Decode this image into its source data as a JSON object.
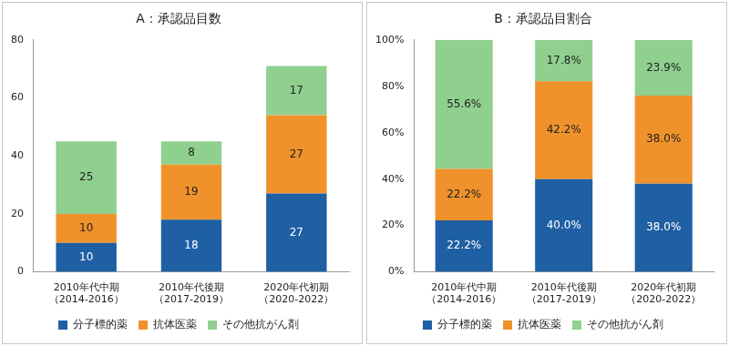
{
  "chart_data": [
    {
      "type": "bar",
      "title": "A：承認品目数",
      "categories": [
        "2010年代中期\n（2014-2016）",
        "2010年代後期\n（2017-2019）",
        "2020年代初期\n（2020-2022）"
      ],
      "series": [
        {
          "name": "分子標的薬",
          "color": "#1f5fa3",
          "values": [
            10,
            18,
            27
          ]
        },
        {
          "name": "抗体医薬",
          "color": "#f0922b",
          "values": [
            10,
            19,
            27
          ]
        },
        {
          "name": "その他抗がん剤",
          "color": "#90d08f",
          "values": [
            25,
            8,
            17
          ]
        }
      ],
      "ylim": [
        0,
        80
      ],
      "yticks": [
        0,
        20,
        40,
        60,
        80
      ],
      "stacked": true,
      "data_labels": true,
      "grid": false,
      "legend": "bottom"
    },
    {
      "type": "bar",
      "title": "B：承認品目割合",
      "categories": [
        "2010年代中期\n（2014-2016）",
        "2010年代後期\n（2017-2019）",
        "2020年代初期\n（2020-2022）"
      ],
      "series": [
        {
          "name": "分子標的薬",
          "color": "#1f5fa3",
          "values": [
            22.2,
            40.0,
            38.0
          ],
          "value_labels": [
            "22.2%",
            "40.0%",
            "38.0%"
          ]
        },
        {
          "name": "抗体医薬",
          "color": "#f0922b",
          "values": [
            22.2,
            42.2,
            38.0
          ],
          "value_labels": [
            "22.2%",
            "42.2%",
            "38.0%"
          ]
        },
        {
          "name": "その他抗がん剤",
          "color": "#90d08f",
          "values": [
            55.6,
            17.8,
            23.9
          ],
          "value_labels": [
            "55.6%",
            "17.8%",
            "23.9%"
          ]
        }
      ],
      "ylim": [
        0,
        100
      ],
      "yticks": [
        {
          "value": 0,
          "label": "0%"
        },
        {
          "value": 20,
          "label": "20%"
        },
        {
          "value": 40,
          "label": "40%"
        },
        {
          "value": 60,
          "label": "60%"
        },
        {
          "value": 80,
          "label": "80%"
        },
        {
          "value": 100,
          "label": "100%"
        }
      ],
      "stacked": true,
      "data_labels": true,
      "grid": false,
      "legend": "bottom"
    }
  ]
}
